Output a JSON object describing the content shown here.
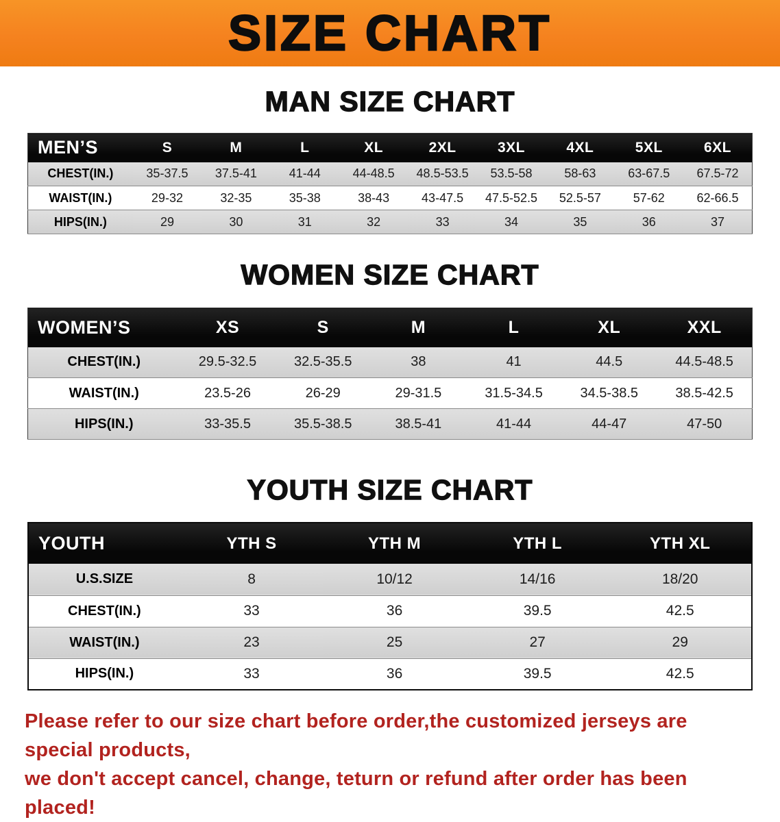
{
  "banner": {
    "title": "SIZE CHART",
    "bg_color": "#F5821F"
  },
  "colors": {
    "header_bar": "#0C0C0C",
    "alt_row": "#D8D8D8",
    "note_text": "#B2231F"
  },
  "sections": [
    {
      "id": "men",
      "heading": "MAN SIZE CHART",
      "table": {
        "header": [
          "MEN’S",
          "S",
          "M",
          "L",
          "XL",
          "2XL",
          "3XL",
          "4XL",
          "5XL",
          "6XL"
        ],
        "rows": [
          [
            "CHEST(IN.)",
            "35-37.5",
            "37.5-41",
            "41-44",
            "44-48.5",
            "48.5-53.5",
            "53.5-58",
            "58-63",
            "63-67.5",
            "67.5-72"
          ],
          [
            "WAIST(IN.)",
            "29-32",
            "32-35",
            "35-38",
            "38-43",
            "43-47.5",
            "47.5-52.5",
            "52.5-57",
            "57-62",
            "62-66.5"
          ],
          [
            "HIPS(IN.)",
            "29",
            "30",
            "31",
            "32",
            "33",
            "34",
            "35",
            "36",
            "37"
          ]
        ]
      }
    },
    {
      "id": "women",
      "heading": "WOMEN SIZE CHART",
      "table": {
        "header": [
          "WOMEN’S",
          "XS",
          "S",
          "M",
          "L",
          "XL",
          "XXL"
        ],
        "rows": [
          [
            "CHEST(IN.)",
            "29.5-32.5",
            "32.5-35.5",
            "38",
            "41",
            "44.5",
            "44.5-48.5"
          ],
          [
            "WAIST(IN.)",
            "23.5-26",
            "26-29",
            "29-31.5",
            "31.5-34.5",
            "34.5-38.5",
            "38.5-42.5"
          ],
          [
            "HIPS(IN.)",
            "33-35.5",
            "35.5-38.5",
            "38.5-41",
            "41-44",
            "44-47",
            "47-50"
          ]
        ]
      }
    },
    {
      "id": "youth",
      "heading": "YOUTH SIZE CHART",
      "table": {
        "header": [
          "YOUTH",
          "YTH S",
          "YTH M",
          "YTH L",
          "YTH XL"
        ],
        "rows": [
          [
            "U.S.SIZE",
            "8",
            "10/12",
            "14/16",
            "18/20"
          ],
          [
            "CHEST(IN.)",
            "33",
            "36",
            "39.5",
            "42.5"
          ],
          [
            "WAIST(IN.)",
            "23",
            "25",
            "27",
            "29"
          ],
          [
            "HIPS(IN.)",
            "33",
            "36",
            "39.5",
            "42.5"
          ]
        ]
      }
    }
  ],
  "note": {
    "line1": "Please refer to our size chart before order,the customized jerseys are special products,",
    "line2": "we don't accept cancel, change, teturn or refund after order has been placed!"
  }
}
